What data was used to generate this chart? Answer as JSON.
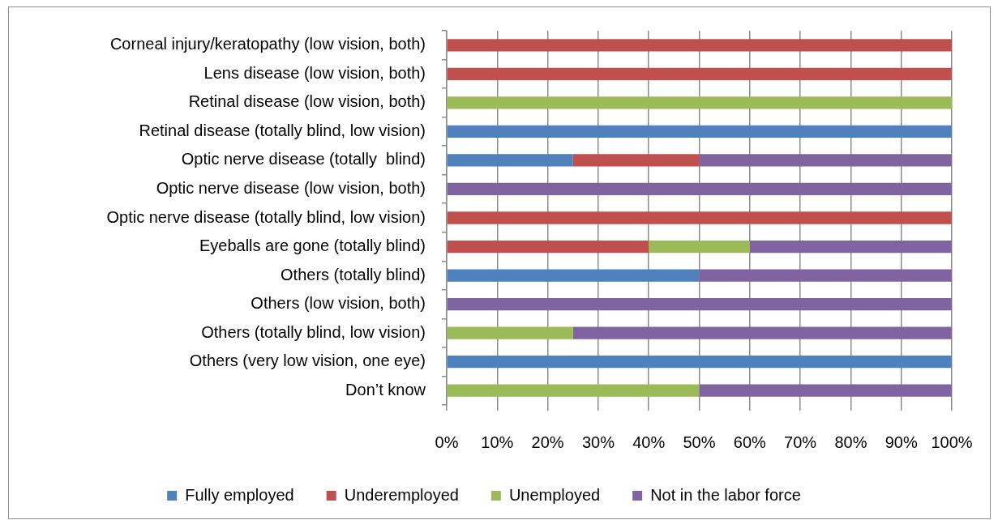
{
  "chart_data": {
    "type": "bar",
    "orientation": "horizontal",
    "stacked": true,
    "categories": [
      "Corneal injury/keratopathy (low vision, both)",
      "Lens disease (low vision, both)",
      "Retinal disease (low vision, both)",
      "Retinal disease (totally blind, low vision)",
      "Optic nerve disease (totally  blind)",
      "Optic nerve disease (low vision, both)",
      "Optic nerve disease (totally blind, low vision)",
      "Eyeballs are gone (totally blind)",
      "Others (totally blind)",
      "Others (low vision, both)",
      "Others (totally blind, low vision)",
      "Others (very low vision, one eye)",
      "Don’t know"
    ],
    "series": [
      {
        "name": "Fully employed",
        "color": "#4f81bd",
        "values": [
          null,
          null,
          null,
          100,
          25,
          null,
          null,
          null,
          50,
          null,
          null,
          100,
          null
        ]
      },
      {
        "name": "Underemployed",
        "color": "#c0504d",
        "values": [
          100,
          100,
          null,
          null,
          25,
          null,
          100,
          40,
          null,
          null,
          null,
          null,
          null
        ]
      },
      {
        "name": "Unemployed",
        "color": "#9bbb59",
        "values": [
          null,
          null,
          100,
          null,
          null,
          null,
          null,
          20,
          null,
          null,
          25,
          null,
          50
        ]
      },
      {
        "name": "Not in the labor force",
        "color": "#8064a2",
        "values": [
          null,
          null,
          null,
          null,
          50,
          100,
          null,
          40,
          50,
          100,
          75,
          null,
          50
        ]
      }
    ],
    "xlim": [
      0,
      100
    ],
    "xticks": [
      {
        "value": 0,
        "label": "0%"
      },
      {
        "value": 10,
        "label": "10%"
      },
      {
        "value": 20,
        "label": "20%"
      },
      {
        "value": 30,
        "label": "30%"
      },
      {
        "value": 40,
        "label": "40%"
      },
      {
        "value": 50,
        "label": "50%"
      },
      {
        "value": 60,
        "label": "60%"
      },
      {
        "value": 70,
        "label": "70%"
      },
      {
        "value": 80,
        "label": "80%"
      },
      {
        "value": 90,
        "label": "90%"
      },
      {
        "value": 100,
        "label": "100%"
      }
    ],
    "grid": "x",
    "legend": "bottom"
  }
}
